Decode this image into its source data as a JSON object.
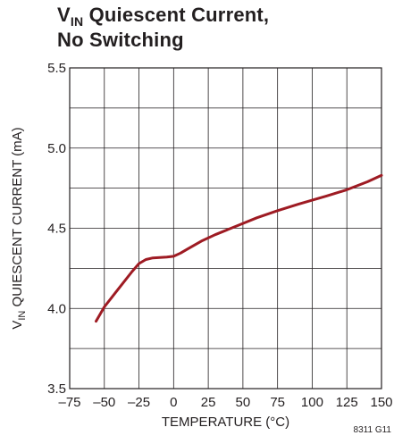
{
  "chart_data": {
    "type": "line",
    "title_main": "V",
    "title_sub": "IN",
    "title_rest": " Quiescent Current,",
    "title_line2": "No Switching",
    "xlabel": "TEMPERATURE (°C)",
    "ylabel_main": "V",
    "ylabel_sub": "IN",
    "ylabel_rest": " QUIESCENT CURRENT (mA)",
    "figure_code": "8311 G11",
    "xlim": [
      -75,
      150
    ],
    "ylim": [
      3.5,
      5.5
    ],
    "xticks": [
      -75,
      -50,
      -25,
      0,
      25,
      50,
      75,
      100,
      125,
      150
    ],
    "xtick_labels": [
      "–75",
      "–50",
      "–25",
      "0",
      "25",
      "50",
      "75",
      "100",
      "125",
      "150"
    ],
    "yticks": [
      3.5,
      4.0,
      4.5,
      5.0,
      5.5
    ],
    "ytick_labels": [
      "3.5",
      "4.0",
      "4.5",
      "5.0",
      "5.5"
    ],
    "grid": true,
    "line_color": "#9e1b23",
    "series": [
      {
        "x": [
          -56,
          -50,
          -40,
          -30,
          -25,
          -20,
          -15,
          -10,
          -5,
          0,
          5,
          10,
          20,
          30,
          40,
          50,
          60,
          75,
          90,
          100,
          110,
          125,
          140,
          150
        ],
        "y": [
          3.92,
          4.01,
          4.12,
          4.23,
          4.28,
          4.305,
          4.315,
          4.318,
          4.32,
          4.325,
          4.345,
          4.37,
          4.42,
          4.46,
          4.495,
          4.53,
          4.565,
          4.61,
          4.65,
          4.675,
          4.7,
          4.74,
          4.79,
          4.83
        ]
      }
    ]
  }
}
